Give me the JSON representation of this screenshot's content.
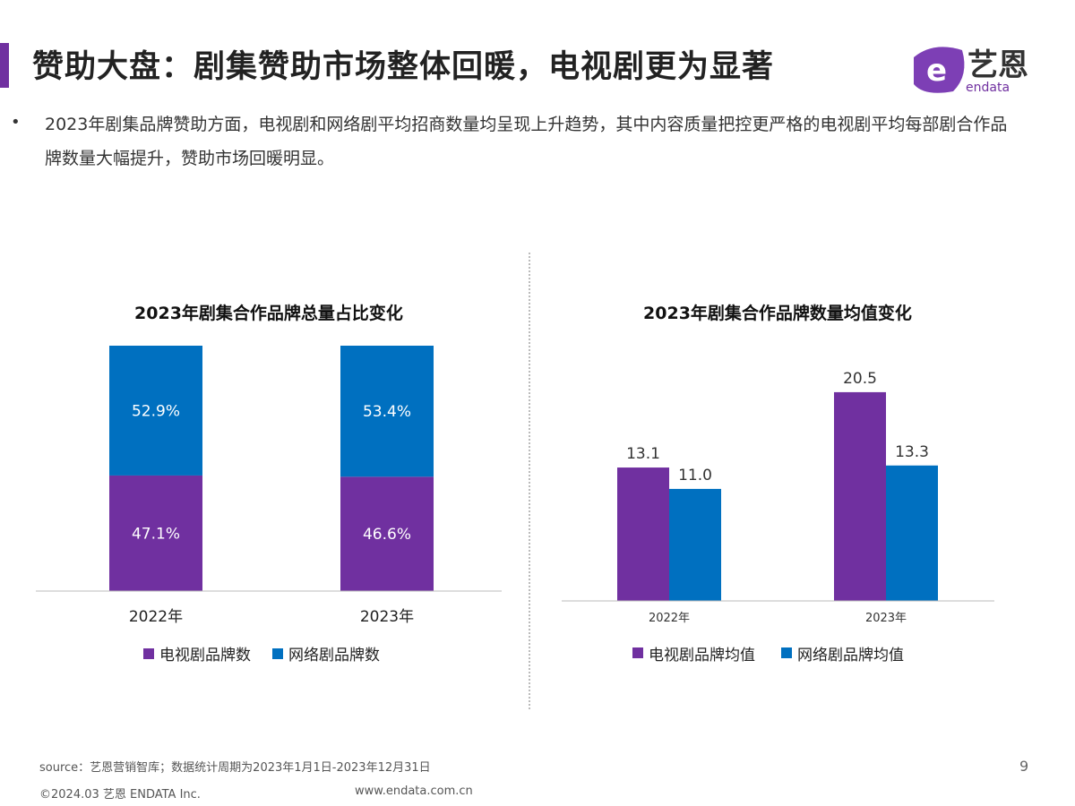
{
  "title": "赞助大盘：剧集赞助市场整体回暖，电视剧更为显著",
  "logo": {
    "text_cn": "艺恩",
    "text_en": "endata"
  },
  "bullet": "•",
  "body": "2023年剧集品牌赞助方面，电视剧和网络剧平均招商数量均呈现上升趋势，其中内容质量把控更严格的电视剧平均每部剧合作品牌数量大幅提升，赞助市场回暖明显。",
  "colors": {
    "accent": "#7030a0",
    "tv": "#7030a0",
    "web": "#0070c0"
  },
  "chart_data": [
    {
      "type": "bar",
      "stacked": true,
      "title": "2023年剧集合作品牌总量占比变化",
      "categories": [
        "2022年",
        "2023年"
      ],
      "series": [
        {
          "name": "电视剧品牌数",
          "values": [
            47.1,
            46.6
          ],
          "labels": [
            "47.1%",
            "46.6%"
          ]
        },
        {
          "name": "网络剧品牌数",
          "values": [
            52.9,
            53.4
          ],
          "labels": [
            "52.9%",
            "53.4%"
          ]
        }
      ],
      "ylim": [
        0,
        100
      ],
      "legend": "bottom",
      "grid": false
    },
    {
      "type": "bar",
      "title": "2023年剧集合作品牌数量均值变化",
      "categories": [
        "2022年",
        "2023年"
      ],
      "series": [
        {
          "name": "电视剧品牌均值",
          "values": [
            13.1,
            20.5
          ],
          "labels": [
            "13.1",
            "20.5"
          ]
        },
        {
          "name": "网络剧品牌均值",
          "values": [
            11.0,
            13.3
          ],
          "labels": [
            "11.0",
            "13.3"
          ]
        }
      ],
      "legend": "bottom",
      "grid": false
    }
  ],
  "footer": {
    "source": "source：艺恩营销智库；数据统计周期为2023年1月1日-2023年12月31日",
    "copyright": "©2024.03 艺恩 ENDATA Inc.",
    "website": "www.endata.com.cn",
    "page": "9"
  }
}
